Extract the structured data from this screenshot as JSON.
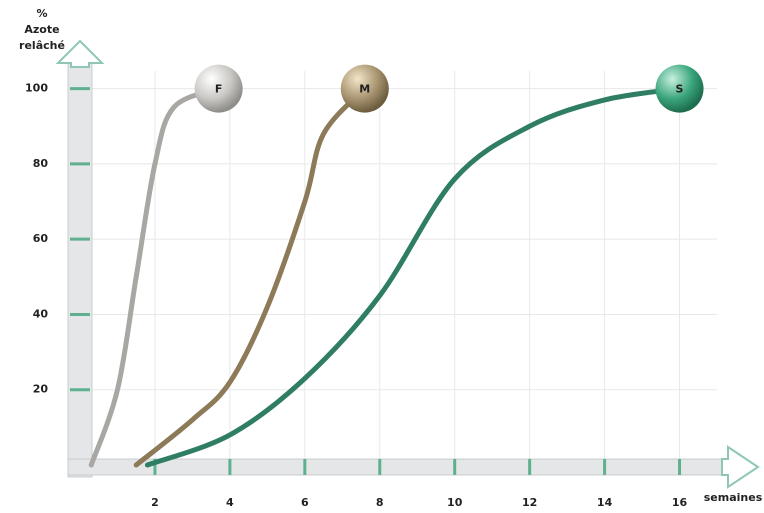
{
  "chart_data": {
    "type": "line",
    "ylabel": [
      "%",
      "Azote",
      "relâché"
    ],
    "xlabel": "semaines",
    "xlim": [
      0,
      17
    ],
    "ylim": [
      0,
      110
    ],
    "xticks": [
      2,
      4,
      6,
      8,
      10,
      12,
      14,
      16
    ],
    "yticks": [
      20,
      40,
      60,
      80,
      100
    ],
    "grid": true,
    "series": [
      {
        "name": "F",
        "color": "#a9a7a3",
        "x": [
          0.3,
          1.0,
          1.5,
          2.0,
          2.5,
          3.7
        ],
        "values": [
          0,
          20,
          50,
          80,
          95,
          100
        ]
      },
      {
        "name": "M",
        "color": "#8c7a58",
        "x": [
          1.5,
          3,
          4,
          5,
          6,
          6.5,
          7.6
        ],
        "values": [
          0,
          12,
          22,
          42,
          70,
          88,
          100
        ]
      },
      {
        "name": "S",
        "color": "#2f7d62",
        "x": [
          1.8,
          4,
          6,
          8,
          10,
          12,
          14,
          16
        ],
        "values": [
          0,
          8,
          23,
          45,
          76,
          90,
          97,
          100
        ]
      }
    ]
  }
}
